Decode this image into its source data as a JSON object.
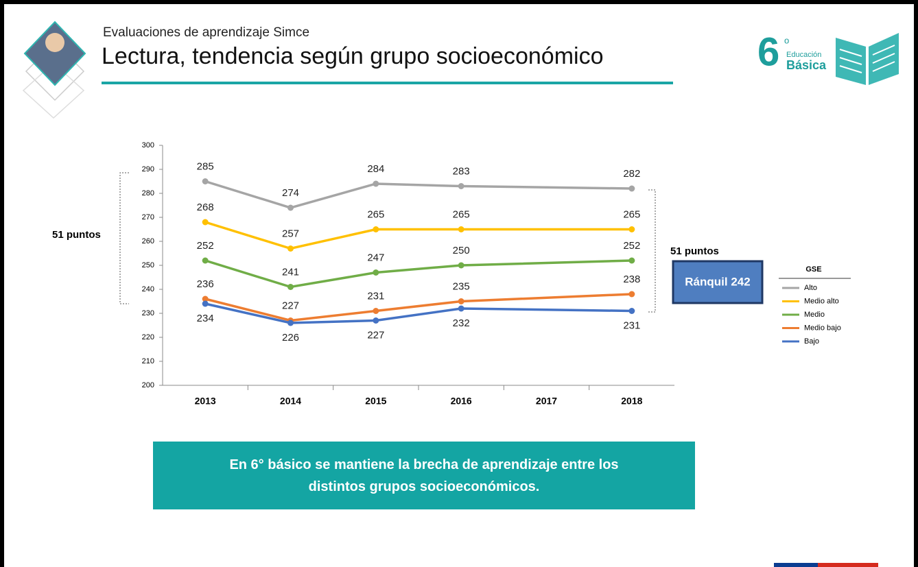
{
  "header": {
    "subtitle": "Evaluaciones de aprendizaje Simce",
    "title": "Lectura, tendencia según grupo socioeconómico"
  },
  "logo": {
    "number": "6",
    "degree": "o",
    "line1": "Educación",
    "line2": "Básica"
  },
  "banner": "En 6° básico se mantiene la brecha de aprendizaje entre los distintos grupos socioeconómicos.",
  "chart_data": {
    "type": "line",
    "x": [
      2013,
      2014,
      2015,
      2016,
      2018
    ],
    "xlim": [
      2012.5,
      2018.5
    ],
    "xticks": [
      2013,
      2014,
      2015,
      2016,
      2017,
      2018
    ],
    "ylim": [
      200,
      300
    ],
    "yticks": [
      200,
      210,
      220,
      230,
      240,
      250,
      260,
      270,
      280,
      290,
      300
    ],
    "legend_title": "GSE",
    "annotations": [
      "51 puntos",
      "51 puntos",
      "Ránquil 242"
    ],
    "series": [
      {
        "name": "Alto",
        "color": "#a5a5a5",
        "values": [
          285,
          274,
          284,
          283,
          282
        ],
        "label_position": "above"
      },
      {
        "name": "Medio alto",
        "color": "#ffc000",
        "values": [
          268,
          257,
          265,
          265,
          265
        ],
        "label_position": "above"
      },
      {
        "name": "Medio",
        "color": "#70ad47",
        "values": [
          252,
          241,
          247,
          250,
          252
        ],
        "label_position": "above"
      },
      {
        "name": "Medio bajo",
        "color": "#ed7d31",
        "values": [
          236,
          227,
          231,
          235,
          238
        ],
        "label_position": "above"
      },
      {
        "name": "Bajo",
        "color": "#4472c4",
        "values": [
          234,
          226,
          227,
          232,
          231
        ],
        "label_position": "below"
      }
    ]
  }
}
